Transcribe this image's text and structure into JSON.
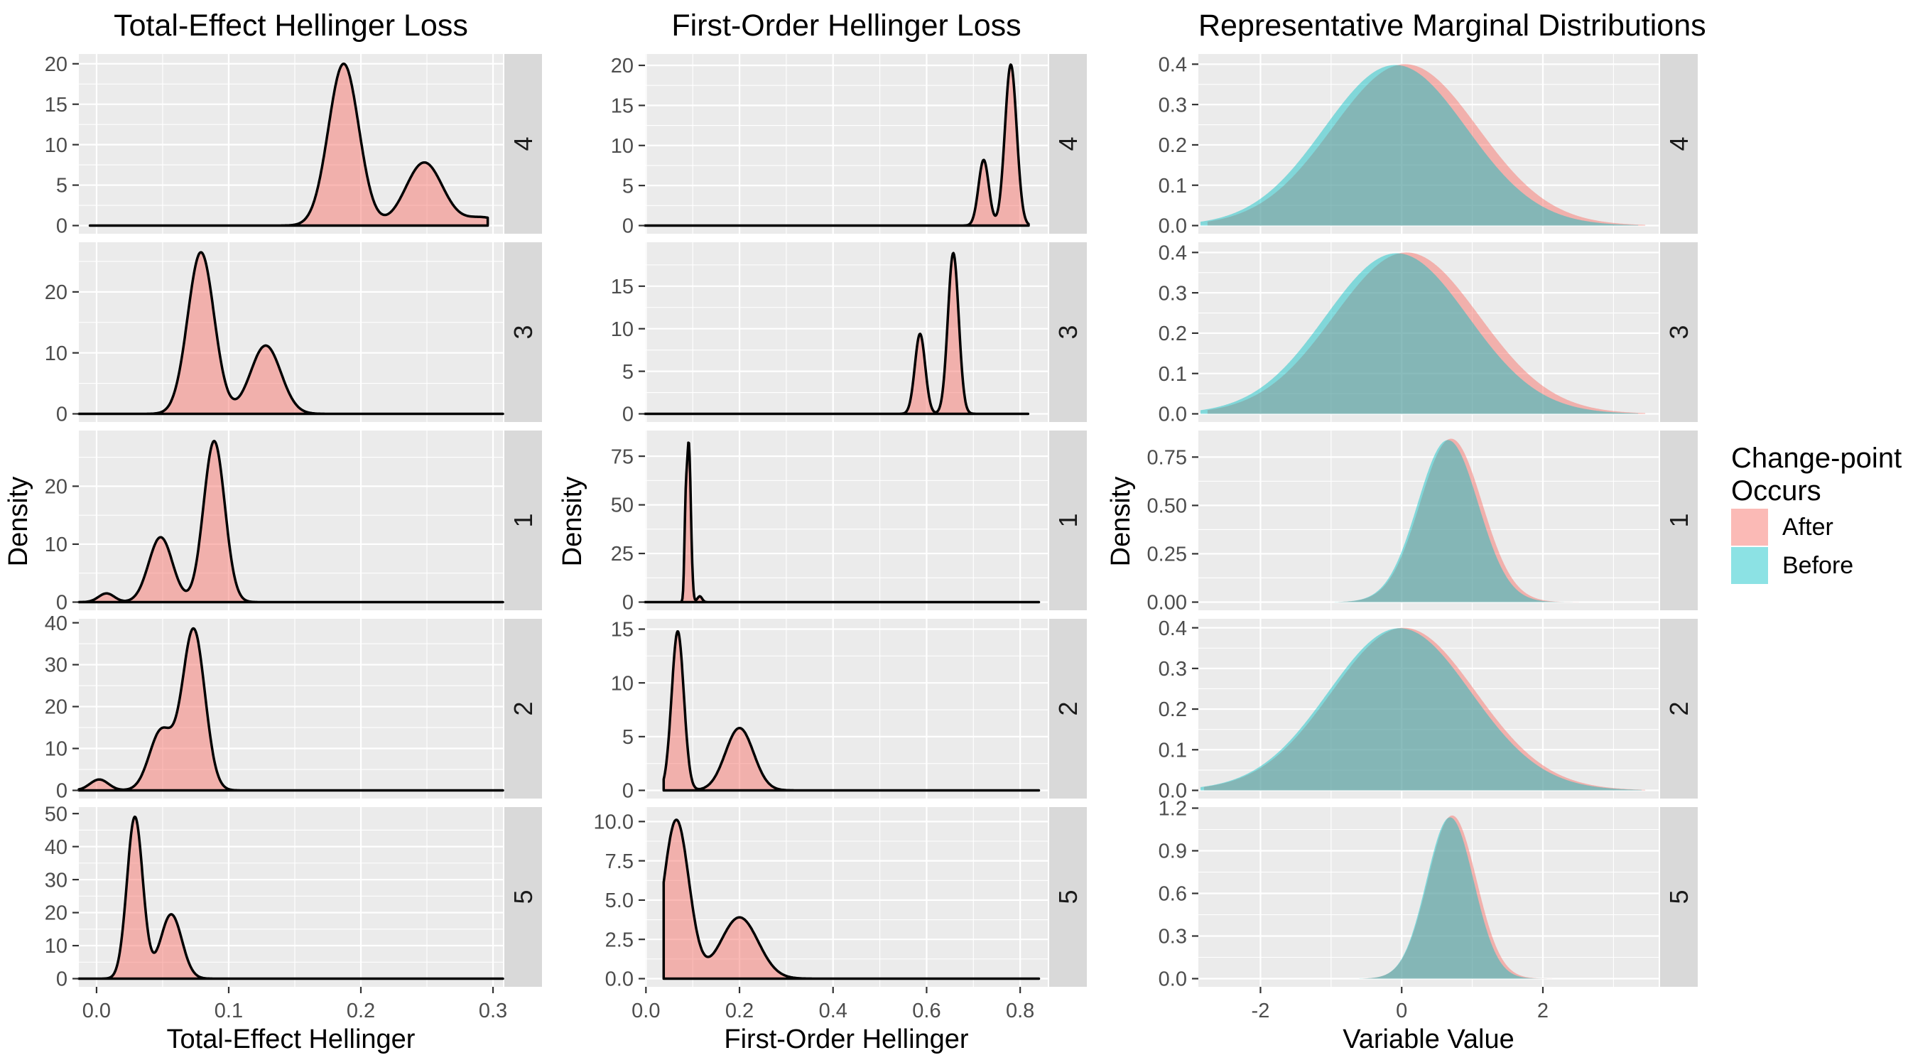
{
  "colors": {
    "after": "#F8766D",
    "after_alpha": 0.5,
    "before": "#00BFC4",
    "before_alpha": 0.45,
    "panel_bg": "#EBEBEB",
    "grid": "#FFFFFF",
    "strip_bg": "#D9D9D9",
    "strip_text": "#1A1A1A",
    "axis_text": "#4D4D4D",
    "tick_mark": "#333333",
    "curve_stroke": "#000000"
  },
  "legend": {
    "title": "Change-point\nOccurs",
    "items": [
      {
        "label": "After",
        "color_key": "after"
      },
      {
        "label": "Before",
        "color_key": "before"
      }
    ]
  },
  "chart_data": [
    {
      "type": "area",
      "title": "Total-Effect Hellinger Loss",
      "xlabel": "Total-Effect Hellinger",
      "ylabel": "Density",
      "grid": true,
      "stroked": true,
      "xlim": [
        -0.0134,
        0.3075
      ],
      "x_major": [
        0,
        0.1,
        0.2,
        0.3
      ],
      "x_tick_labels": [
        "0.0",
        "0.1",
        "0.2",
        "0.3"
      ],
      "facets": [
        {
          "strip": "4",
          "ymax": 20.2,
          "y_major": [
            0,
            5,
            10,
            15,
            20
          ],
          "y_tick_labels": [
            "0",
            "5",
            "10",
            "15",
            "20"
          ],
          "series": [
            {
              "name": "After",
              "color_key": "after",
              "span": [
                -0.005,
                0.296
              ],
              "gaussians": [
                [
                  0.187,
                  0.0115,
                  20.0
                ],
                [
                  0.248,
                  0.014,
                  7.8
                ],
                [
                  0.292,
                  0.013,
                  1.0
                ]
              ]
            }
          ]
        },
        {
          "strip": "3",
          "ymax": 26.8,
          "y_major": [
            0,
            10,
            20
          ],
          "y_tick_labels": [
            "0",
            "10",
            "20"
          ],
          "series": [
            {
              "name": "After",
              "color_key": "after",
              "span": [
                -0.0134,
                0.3075
              ],
              "gaussians": [
                [
                  0.079,
                  0.01,
                  26.5
                ],
                [
                  0.128,
                  0.0115,
                  11.2
                ]
              ]
            }
          ]
        },
        {
          "strip": "1",
          "ymax": 28.2,
          "y_major": [
            0,
            10,
            20
          ],
          "y_tick_labels": [
            "0",
            "10",
            "20"
          ],
          "series": [
            {
              "name": "After",
              "color_key": "after",
              "span": [
                -0.0134,
                0.3075
              ],
              "gaussians": [
                [
                  0.0075,
                  0.006,
                  1.5
                ],
                [
                  0.0485,
                  0.009,
                  11.2
                ],
                [
                  0.089,
                  0.008,
                  27.8
                ]
              ]
            }
          ]
        },
        {
          "strip": "2",
          "ymax": 39.0,
          "y_major": [
            0,
            10,
            20,
            30,
            40
          ],
          "y_tick_labels": [
            "0",
            "10",
            "20",
            "30",
            "40"
          ],
          "series": [
            {
              "name": "After",
              "color_key": "after",
              "span": [
                -0.0134,
                0.3075
              ],
              "gaussians": [
                [
                  0.002,
                  0.007,
                  2.6
                ],
                [
                  0.049,
                  0.009,
                  14.2
                ],
                [
                  0.0735,
                  0.0085,
                  38.3
                ]
              ]
            }
          ]
        },
        {
          "strip": "5",
          "ymax": 49.5,
          "y_major": [
            0,
            10,
            20,
            30,
            40,
            50
          ],
          "y_tick_labels": [
            "0",
            "10",
            "20",
            "30",
            "40",
            "50"
          ],
          "series": [
            {
              "name": "After",
              "color_key": "after",
              "span": [
                -0.0134,
                0.3075
              ],
              "gaussians": [
                [
                  0.029,
                  0.006,
                  49.0
                ],
                [
                  0.0565,
                  0.008,
                  19.5
                ]
              ]
            }
          ]
        }
      ]
    },
    {
      "type": "area",
      "title": "First-Order Hellinger Loss",
      "xlabel": "First-Order Hellinger",
      "ylabel": "Density",
      "grid": true,
      "stroked": true,
      "xlim": [
        -0.002,
        0.859
      ],
      "x_major": [
        0,
        0.2,
        0.4,
        0.6,
        0.8
      ],
      "x_tick_labels": [
        "0.0",
        "0.2",
        "0.4",
        "0.6",
        "0.8"
      ],
      "facets": [
        {
          "strip": "4",
          "ymax": 20.4,
          "y_major": [
            0,
            5,
            10,
            15,
            20
          ],
          "y_tick_labels": [
            "0",
            "5",
            "10",
            "15",
            "20"
          ],
          "series": [
            {
              "name": "After",
              "color_key": "after",
              "span": [
                -0.002,
                0.818
              ],
              "gaussians": [
                [
                  0.722,
                  0.011,
                  8.2
                ],
                [
                  0.78,
                  0.0125,
                  20.1
                ]
              ]
            }
          ]
        },
        {
          "strip": "3",
          "ymax": 19.2,
          "y_major": [
            0,
            5,
            10,
            15
          ],
          "y_tick_labels": [
            "0",
            "5",
            "10",
            "15"
          ],
          "series": [
            {
              "name": "After",
              "color_key": "after",
              "span": [
                -0.002,
                0.817
              ],
              "gaussians": [
                [
                  0.586,
                  0.011,
                  9.4
                ],
                [
                  0.657,
                  0.0115,
                  18.9
                ]
              ]
            }
          ]
        },
        {
          "strip": "1",
          "ymax": 84.0,
          "y_major": [
            0,
            25,
            50,
            75
          ],
          "y_tick_labels": [
            "0",
            "25",
            "50",
            "75"
          ],
          "series": [
            {
              "name": "After",
              "color_key": "after",
              "span": [
                -0.002,
                0.84
              ],
              "gaussians": [
                [
                  0.0845,
                  0.0025,
                  30.0
                ],
                [
                  0.0915,
                  0.0045,
                  82.0
                ],
                [
                  0.115,
                  0.005,
                  3.0
                ]
              ]
            }
          ]
        },
        {
          "strip": "2",
          "ymax": 15.2,
          "y_major": [
            0,
            5,
            10,
            15
          ],
          "y_tick_labels": [
            "0",
            "5",
            "10",
            "15"
          ],
          "series": [
            {
              "name": "After",
              "color_key": "after",
              "span": [
                0.038,
                0.84
              ],
              "gaussians": [
                [
                  0.068,
                  0.013,
                  14.8
                ],
                [
                  0.2,
                  0.03,
                  5.8
                ]
              ]
            }
          ]
        },
        {
          "strip": "5",
          "ymax": 10.4,
          "y_major": [
            0,
            2.5,
            5,
            7.5,
            10
          ],
          "y_tick_labels": [
            "0.0",
            "2.5",
            "5.0",
            "7.5",
            "10.0"
          ],
          "series": [
            {
              "name": "After",
              "color_key": "after",
              "span": [
                0.038,
                0.84
              ],
              "gaussians": [
                [
                  0.065,
                  0.027,
                  10.1
                ],
                [
                  0.2,
                  0.04,
                  3.9
                ]
              ]
            }
          ]
        }
      ]
    },
    {
      "type": "area",
      "title": "Representative Marginal Distributions",
      "xlabel": "Variable Value",
      "ylabel": "Density",
      "grid": true,
      "stroked": false,
      "xlim": [
        -2.88,
        3.64
      ],
      "x_major": [
        -2,
        0,
        2
      ],
      "x_tick_labels": [
        "-2",
        "0",
        "2"
      ],
      "facets": [
        {
          "strip": "4",
          "ymax": 0.405,
          "y_major": [
            0,
            0.1,
            0.2,
            0.3,
            0.4
          ],
          "y_tick_labels": [
            "0.0",
            "0.1",
            "0.2",
            "0.3",
            "0.4"
          ],
          "series": [
            {
              "name": "After",
              "color_key": "after",
              "span": [
                -2.75,
                3.45
              ],
              "gaussians": [
                [
                  0.05,
                  1.03,
                  0.4
                ]
              ]
            },
            {
              "name": "Before",
              "color_key": "before",
              "span": [
                -2.85,
                3.35
              ],
              "gaussians": [
                [
                  -0.09,
                  1.01,
                  0.398
                ]
              ]
            }
          ]
        },
        {
          "strip": "3",
          "ymax": 0.405,
          "y_major": [
            0,
            0.1,
            0.2,
            0.3,
            0.4
          ],
          "y_tick_labels": [
            "0.0",
            "0.1",
            "0.2",
            "0.3",
            "0.4"
          ],
          "series": [
            {
              "name": "After",
              "color_key": "after",
              "span": [
                -2.75,
                3.45
              ],
              "gaussians": [
                [
                  0.07,
                  1.03,
                  0.4
                ]
              ]
            },
            {
              "name": "Before",
              "color_key": "before",
              "span": [
                -2.85,
                3.35
              ],
              "gaussians": [
                [
                  -0.07,
                  1.01,
                  0.398
                ]
              ]
            }
          ]
        },
        {
          "strip": "1",
          "ymax": 0.845,
          "y_major": [
            0,
            0.25,
            0.5,
            0.75
          ],
          "y_tick_labels": [
            "0.00",
            "0.25",
            "0.50",
            "0.75"
          ],
          "series": [
            {
              "name": "After",
              "color_key": "after",
              "span": [
                -0.9,
                2.6
              ],
              "gaussians": [
                [
                  0.7,
                  0.44,
                  0.845
                ]
              ]
            },
            {
              "name": "Before",
              "color_key": "before",
              "span": [
                -0.95,
                2.5
              ],
              "gaussians": [
                [
                  0.655,
                  0.43,
                  0.838
                ]
              ]
            }
          ]
        },
        {
          "strip": "2",
          "ymax": 0.402,
          "y_major": [
            0,
            0.1,
            0.2,
            0.3,
            0.4
          ],
          "y_tick_labels": [
            "0.0",
            "0.1",
            "0.2",
            "0.3",
            "0.4"
          ],
          "series": [
            {
              "name": "After",
              "color_key": "after",
              "span": [
                -2.8,
                3.45
              ],
              "gaussians": [
                [
                  0.03,
                  1.02,
                  0.4
                ]
              ]
            },
            {
              "name": "Before",
              "color_key": "before",
              "span": [
                -2.85,
                3.4
              ],
              "gaussians": [
                [
                  -0.03,
                  1.01,
                  0.399
                ]
              ]
            }
          ]
        },
        {
          "strip": "5",
          "ymax": 1.15,
          "y_major": [
            0,
            0.3,
            0.6,
            0.9,
            1.2
          ],
          "y_tick_labels": [
            "0.0",
            "0.3",
            "0.6",
            "0.9",
            "1.2"
          ],
          "series": [
            {
              "name": "After",
              "color_key": "after",
              "span": [
                -0.55,
                2.35
              ],
              "gaussians": [
                [
                  0.715,
                  0.345,
                  1.148
                ]
              ]
            },
            {
              "name": "Before",
              "color_key": "before",
              "span": [
                -0.6,
                2.3
              ],
              "gaussians": [
                [
                  0.685,
                  0.335,
                  1.135
                ]
              ]
            }
          ]
        }
      ]
    }
  ]
}
